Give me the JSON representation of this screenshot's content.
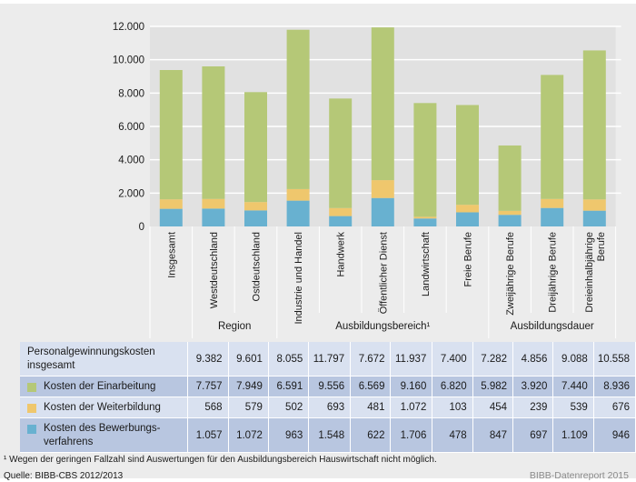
{
  "chart_data": {
    "type": "bar",
    "stacked": true,
    "title": "",
    "xlabel": "",
    "ylabel": "",
    "ylim": [
      0,
      12000
    ],
    "yticks": [
      0,
      2000,
      4000,
      6000,
      8000,
      10000,
      12000
    ],
    "ytick_labels": [
      "0",
      "2.000",
      "4.000",
      "6.000",
      "8.000",
      "10.000",
      "12.000"
    ],
    "grid": true,
    "categories": [
      "Insgesamt",
      "Westdeutschland",
      "Ostdeutschland",
      "Industrie und Handel",
      "Handwerk",
      "Öffentlicher Dienst",
      "Landwirtschaft",
      "Freie Berufe",
      "Zweijährige Berufe",
      "Dreijährige Berufe",
      "Dreieinhalbjährige Berufe"
    ],
    "category_lines": [
      [
        "Insgesamt"
      ],
      [
        "Westdeutschland"
      ],
      [
        "Ostdeutschland"
      ],
      [
        "Industrie und Handel"
      ],
      [
        "Handwerk"
      ],
      [
        "Öffentlicher Dienst"
      ],
      [
        "Landwirtschaft"
      ],
      [
        "Freie Berufe"
      ],
      [
        "Zweijährige Berufe"
      ],
      [
        "Dreijährige Berufe"
      ],
      [
        "Dreieinhalbjährige",
        "Berufe"
      ]
    ],
    "groups": [
      {
        "label": "Region",
        "start": 1,
        "end": 2
      },
      {
        "label": "Ausbildungsbereich¹",
        "start": 3,
        "end": 7
      },
      {
        "label": "Ausbildungsdauer",
        "start": 8,
        "end": 10
      }
    ],
    "series": [
      {
        "name": "Kosten des Bewerbungsverfahrens",
        "color": "#68b1d0",
        "values": [
          1057,
          1072,
          963,
          1548,
          622,
          1706,
          478,
          847,
          697,
          1109,
          946
        ]
      },
      {
        "name": "Kosten der Weiterbildung",
        "color": "#efc76d",
        "values": [
          568,
          579,
          502,
          693,
          481,
          1072,
          103,
          454,
          239,
          539,
          676
        ]
      },
      {
        "name": "Kosten der Einarbeitung",
        "color": "#b5c877",
        "values": [
          7757,
          7949,
          6591,
          9556,
          6569,
          9160,
          6820,
          5982,
          3920,
          7440,
          8936
        ]
      }
    ],
    "totals": [
      9382,
      9601,
      8055,
      11797,
      7672,
      11937,
      7400,
      7282,
      4856,
      9088,
      10558
    ],
    "legend": "table-rows"
  },
  "table": {
    "rows": [
      {
        "label_lines": [
          "Personalgewinnungskosten",
          "insgesamt"
        ],
        "swatch": null,
        "values": [
          "9.382",
          "9.601",
          "8.055",
          "11.797",
          "7.672",
          "11.937",
          "7.400",
          "7.282",
          "4.856",
          "9.088",
          "10.558"
        ]
      },
      {
        "label_lines": [
          "Kosten der Einarbeitung"
        ],
        "swatch": "#b5c877",
        "values": [
          "7.757",
          "7.949",
          "6.591",
          "9.556",
          "6.569",
          "9.160",
          "6.820",
          "5.982",
          "3.920",
          "7.440",
          "8.936"
        ]
      },
      {
        "label_lines": [
          "Kosten der Weiterbildung"
        ],
        "swatch": "#efc76d",
        "values": [
          "568",
          "579",
          "502",
          "693",
          "481",
          "1.072",
          "103",
          "454",
          "239",
          "539",
          "676"
        ]
      },
      {
        "label_lines": [
          "Kosten des Bewerbungs-",
          "verfahrens"
        ],
        "swatch": "#68b1d0",
        "values": [
          "1.057",
          "1.072",
          "963",
          "1.548",
          "622",
          "1.706",
          "478",
          "847",
          "697",
          "1.109",
          "946"
        ]
      }
    ]
  },
  "footnote": "¹ Wegen der geringen Fallzahl sind Auswertungen für den Ausbildungsbereich Hauswirtschaft nicht möglich.",
  "source": "Quelle: BIBB-CBS 2012/2013",
  "brand": "BIBB-Datenreport 2015",
  "colors": {
    "plot_bg": "#e1e1e1",
    "frame_bg": "#ececec",
    "grid": "#ffffff"
  }
}
